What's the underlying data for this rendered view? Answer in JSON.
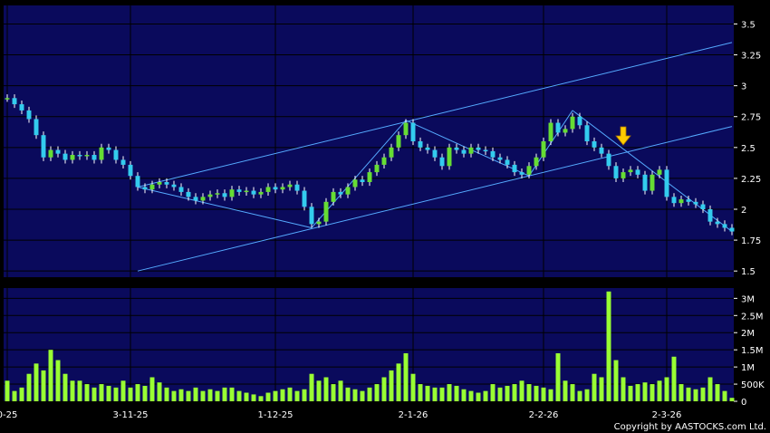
{
  "copyright": "Copyright by AASTOCKS.com Ltd.",
  "colors": {
    "background": "#000000",
    "panel": "#0a0a5c",
    "grid": "#000000",
    "up_candle": "#66dd33",
    "down_candle": "#33ccee",
    "volume_bar": "#99ff33",
    "trendline": "#55aaff",
    "arrow": "#ffcc00"
  },
  "chart_data": [
    {
      "type": "candlestick",
      "title": "",
      "x_tick_labels": [
        "0-25",
        "3-11-25",
        "1-12-25",
        "2-1-26",
        "2-2-26",
        "2-3-26"
      ],
      "x_tick_index": [
        0,
        17,
        37,
        56,
        74,
        91
      ],
      "y_tick_labels": [
        "3.5",
        "3.25",
        "3",
        "2.75",
        "2.5",
        "2.25",
        "2",
        "1.75",
        "1.5"
      ],
      "ylim": [
        1.45,
        3.65
      ],
      "grid": true,
      "close": [
        2.9,
        2.85,
        2.8,
        2.73,
        2.6,
        2.42,
        2.48,
        2.45,
        2.4,
        2.44,
        2.43,
        2.44,
        2.4,
        2.5,
        2.48,
        2.4,
        2.36,
        2.27,
        2.18,
        2.16,
        2.2,
        2.22,
        2.2,
        2.18,
        2.14,
        2.1,
        2.07,
        2.1,
        2.12,
        2.13,
        2.1,
        2.16,
        2.14,
        2.15,
        2.12,
        2.14,
        2.18,
        2.16,
        2.18,
        2.2,
        2.15,
        2.02,
        1.88,
        1.9,
        2.06,
        2.14,
        2.12,
        2.18,
        2.24,
        2.22,
        2.3,
        2.36,
        2.42,
        2.5,
        2.6,
        2.7,
        2.55,
        2.5,
        2.48,
        2.42,
        2.35,
        2.5,
        2.48,
        2.45,
        2.5,
        2.48,
        2.47,
        2.42,
        2.4,
        2.36,
        2.3,
        2.28,
        2.35,
        2.42,
        2.55,
        2.7,
        2.62,
        2.65,
        2.75,
        2.68,
        2.55,
        2.5,
        2.45,
        2.35,
        2.25,
        2.3,
        2.32,
        2.28,
        2.15,
        2.28,
        2.32,
        2.1,
        2.05,
        2.08,
        2.06,
        2.04,
        2.0,
        1.9,
        1.88,
        1.85,
        1.82
      ],
      "volume": {
        "y_tick_labels": [
          "3M",
          "2.5M",
          "2M",
          "1.5M",
          "1M",
          "500K",
          "0"
        ],
        "ylim": [
          0,
          3300000
        ],
        "values": [
          600000,
          300000,
          400000,
          800000,
          1100000,
          900000,
          1500000,
          1200000,
          800000,
          600000,
          600000,
          500000,
          400000,
          500000,
          450000,
          400000,
          600000,
          400000,
          500000,
          450000,
          700000,
          550000,
          400000,
          300000,
          350000,
          300000,
          400000,
          300000,
          350000,
          300000,
          400000,
          400000,
          300000,
          250000,
          200000,
          150000,
          250000,
          300000,
          350000,
          400000,
          300000,
          350000,
          800000,
          600000,
          700000,
          500000,
          600000,
          400000,
          350000,
          300000,
          400000,
          500000,
          700000,
          900000,
          1100000,
          1400000,
          800000,
          500000,
          450000,
          400000,
          400000,
          500000,
          450000,
          350000,
          300000,
          250000,
          300000,
          500000,
          400000,
          450000,
          500000,
          600000,
          500000,
          450000,
          400000,
          350000,
          1400000,
          600000,
          500000,
          300000,
          350000,
          800000,
          700000,
          3200000,
          1200000,
          700000,
          450000,
          500000,
          550000,
          500000,
          600000,
          700000,
          1300000,
          500000,
          400000,
          350000,
          400000,
          700000,
          500000,
          300000,
          100000
        ]
      }
    }
  ]
}
